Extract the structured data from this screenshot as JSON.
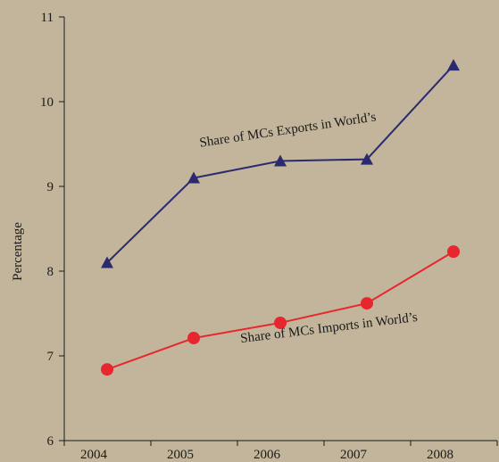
{
  "chart_data": {
    "type": "line",
    "x": [
      "2004",
      "2005",
      "2006",
      "2007",
      "2008"
    ],
    "ylabel": "Percentage",
    "ylim": [
      6,
      11
    ],
    "yticks": [
      6,
      7,
      8,
      9,
      10,
      11
    ],
    "grid": false,
    "colors": {
      "background": "#c2b59b",
      "exports": "#2b2a6e",
      "imports": "#e8262d"
    },
    "series": [
      {
        "key": "exports",
        "marker": "triangle",
        "values": [
          8.1,
          9.1,
          9.3,
          9.32,
          10.43
        ]
      },
      {
        "key": "imports",
        "marker": "circle",
        "values": [
          6.84,
          7.21,
          7.39,
          7.62,
          8.23
        ]
      }
    ],
    "annotations": [
      {
        "text": "Share of MCs Exports in World’s",
        "series": "exports"
      },
      {
        "text": "Share of MCs Imports in World’s",
        "series": "imports"
      }
    ]
  }
}
